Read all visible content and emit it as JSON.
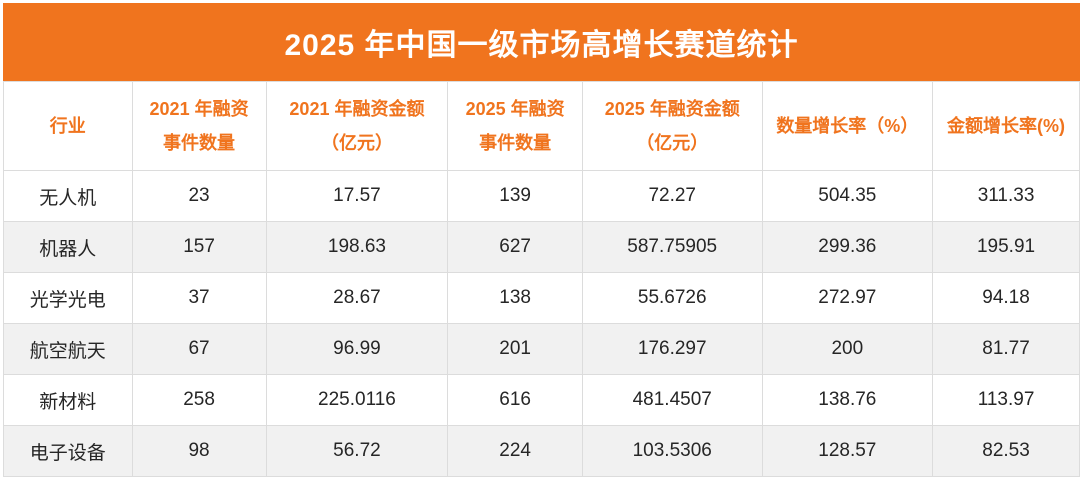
{
  "title": "2025 年中国一级市场高增长赛道统计",
  "colors": {
    "accent": "#F0741E",
    "title_text": "#FFFFFF",
    "header_text": "#F0741E",
    "body_text": "#262626",
    "row_stripe": "#F1F1F1",
    "border": "#DCDCDC"
  },
  "table": {
    "headers": [
      {
        "lines": [
          "行业"
        ]
      },
      {
        "lines": [
          "2021 年融资",
          "事件数量"
        ]
      },
      {
        "lines": [
          "2021 年融资金额",
          "（亿元）"
        ]
      },
      {
        "lines": [
          "2025 年融资",
          "事件数量"
        ]
      },
      {
        "lines": [
          "2025 年融资金额",
          "（亿元）"
        ]
      },
      {
        "lines": [
          "数量增长率（%）"
        ]
      },
      {
        "lines": [
          "金额增长率(%)"
        ]
      }
    ],
    "rows": [
      [
        "无人机",
        "23",
        "17.57",
        "139",
        "72.27",
        "504.35",
        "311.33"
      ],
      [
        "机器人",
        "157",
        "198.63",
        "627",
        "587.75905",
        "299.36",
        "195.91"
      ],
      [
        "光学光电",
        "37",
        "28.67",
        "138",
        "55.6726",
        "272.97",
        "94.18"
      ],
      [
        "航空航天",
        "67",
        "96.99",
        "201",
        "176.297",
        "200",
        "81.77"
      ],
      [
        "新材料",
        "258",
        "225.0116",
        "616",
        "481.4507",
        "138.76",
        "113.97"
      ],
      [
        "电子设备",
        "98",
        "56.72",
        "224",
        "103.5306",
        "128.57",
        "82.53"
      ]
    ]
  },
  "chart_data": {
    "type": "table",
    "title": "2025 年中国一级市场高增长赛道统计",
    "columns": [
      "行业",
      "2021 年融资事件数量",
      "2021 年融资金额（亿元）",
      "2025 年融资事件数量",
      "2025 年融资金额（亿元）",
      "数量增长率（%）",
      "金额增长率(%)"
    ],
    "rows": [
      {
        "industry": "无人机",
        "events_2021": 23,
        "amount_2021": 17.57,
        "events_2025": 139,
        "amount_2025": 72.27,
        "count_growth_pct": 504.35,
        "amount_growth_pct": 311.33
      },
      {
        "industry": "机器人",
        "events_2021": 157,
        "amount_2021": 198.63,
        "events_2025": 627,
        "amount_2025": 587.75905,
        "count_growth_pct": 299.36,
        "amount_growth_pct": 195.91
      },
      {
        "industry": "光学光电",
        "events_2021": 37,
        "amount_2021": 28.67,
        "events_2025": 138,
        "amount_2025": 55.6726,
        "count_growth_pct": 272.97,
        "amount_growth_pct": 94.18
      },
      {
        "industry": "航空航天",
        "events_2021": 67,
        "amount_2021": 96.99,
        "events_2025": 201,
        "amount_2025": 176.297,
        "count_growth_pct": 200,
        "amount_growth_pct": 81.77
      },
      {
        "industry": "新材料",
        "events_2021": 258,
        "amount_2021": 225.0116,
        "events_2025": 616,
        "amount_2025": 481.4507,
        "count_growth_pct": 138.76,
        "amount_growth_pct": 113.97
      },
      {
        "industry": "电子设备",
        "events_2021": 98,
        "amount_2021": 56.72,
        "events_2025": 224,
        "amount_2025": 103.5306,
        "count_growth_pct": 128.57,
        "amount_growth_pct": 82.53
      }
    ]
  }
}
